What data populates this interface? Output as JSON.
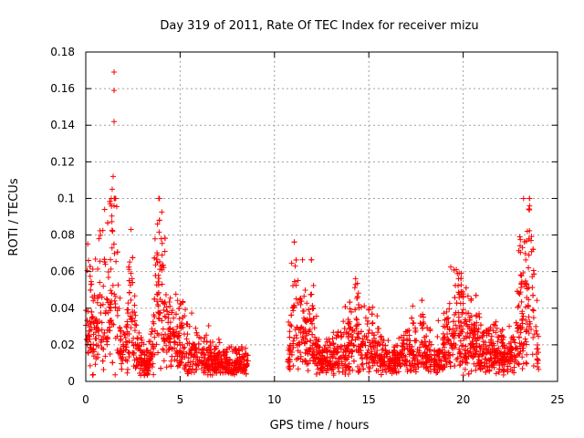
{
  "chart_data": {
    "type": "scatter",
    "title": "Day 319 of 2011, Rate Of TEC Index for receiver mizu",
    "xlabel": "GPS time / hours",
    "ylabel": "ROTI / TECUs",
    "xlim": [
      0,
      25
    ],
    "ylim": [
      0,
      0.18
    ],
    "xticks": [
      0,
      5,
      10,
      15,
      20,
      25
    ],
    "yticks": [
      0,
      0.02,
      0.04,
      0.06,
      0.08,
      0.1,
      0.12,
      0.14,
      0.16,
      0.18
    ],
    "grid": true,
    "marker": "+",
    "color": "#ff0000",
    "data_gap_hours": [
      8.6,
      10.7
    ],
    "series": [
      {
        "name": "ROTI",
        "highlight_points": [
          {
            "x": 1.5,
            "y": 0.169
          },
          {
            "x": 1.5,
            "y": 0.159
          },
          {
            "x": 1.5,
            "y": 0.142
          },
          {
            "x": 1.45,
            "y": 0.112
          },
          {
            "x": 1.4,
            "y": 0.105
          },
          {
            "x": 1.3,
            "y": 0.097
          },
          {
            "x": 1.0,
            "y": 0.094
          },
          {
            "x": 0.7,
            "y": 0.078
          },
          {
            "x": 2.4,
            "y": 0.083
          },
          {
            "x": 3.8,
            "y": 0.086
          },
          {
            "x": 4.0,
            "y": 0.078
          },
          {
            "x": 11.1,
            "y": 0.063
          },
          {
            "x": 14.3,
            "y": 0.053
          },
          {
            "x": 19.9,
            "y": 0.059
          },
          {
            "x": 23.0,
            "y": 0.079
          },
          {
            "x": 23.4,
            "y": 0.082
          },
          {
            "x": 23.6,
            "y": 0.077
          }
        ]
      }
    ]
  }
}
